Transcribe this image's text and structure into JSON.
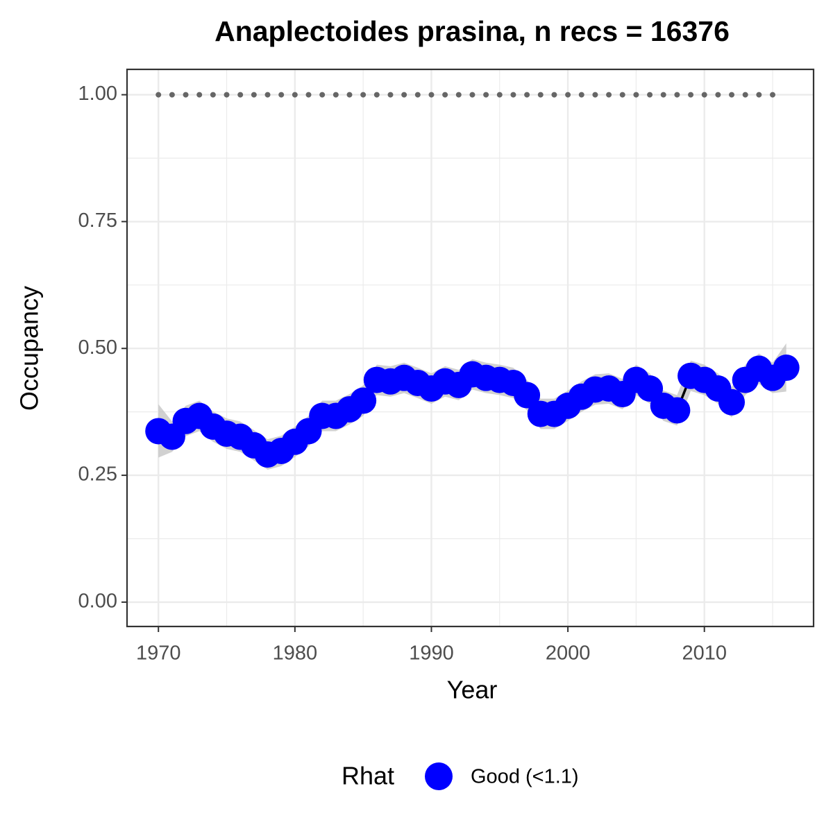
{
  "chart_data": {
    "type": "line",
    "title": "Anaplectoides prasina, n recs = 16376",
    "x_label": "Year",
    "y_label": "Occupancy",
    "legend_title": "Rhat",
    "x": [
      1970,
      1971,
      1972,
      1973,
      1974,
      1975,
      1976,
      1977,
      1978,
      1979,
      1980,
      1981,
      1982,
      1983,
      1984,
      1985,
      1986,
      1987,
      1988,
      1989,
      1990,
      1991,
      1992,
      1993,
      1994,
      1995,
      1996,
      1997,
      1998,
      1999,
      2000,
      2001,
      2002,
      2003,
      2004,
      2005,
      2006,
      2007,
      2008,
      2009,
      2010,
      2011,
      2012,
      2013,
      2014,
      2015,
      2016
    ],
    "series": [
      {
        "name": "Good (<1.1)",
        "color": "#0000ff",
        "line_color": "#000000",
        "values": [
          0.337,
          0.326,
          0.357,
          0.367,
          0.346,
          0.332,
          0.326,
          0.309,
          0.291,
          0.298,
          0.316,
          0.337,
          0.367,
          0.367,
          0.38,
          0.397,
          0.438,
          0.435,
          0.442,
          0.432,
          0.421,
          0.435,
          0.428,
          0.449,
          0.442,
          0.438,
          0.432,
          0.408,
          0.371,
          0.371,
          0.387,
          0.405,
          0.419,
          0.421,
          0.41,
          0.438,
          0.421,
          0.387,
          0.378,
          0.446,
          0.438,
          0.421,
          0.394,
          0.438,
          0.46,
          0.442,
          0.462
        ],
        "upper": [
          0.39,
          0.356,
          0.387,
          0.397,
          0.376,
          0.362,
          0.356,
          0.339,
          0.321,
          0.328,
          0.346,
          0.367,
          0.397,
          0.397,
          0.41,
          0.427,
          0.468,
          0.465,
          0.472,
          0.462,
          0.451,
          0.465,
          0.458,
          0.479,
          0.472,
          0.468,
          0.462,
          0.438,
          0.401,
          0.401,
          0.417,
          0.435,
          0.449,
          0.451,
          0.44,
          0.468,
          0.451,
          0.417,
          0.408,
          0.476,
          0.468,
          0.451,
          0.424,
          0.468,
          0.49,
          0.472,
          0.51
        ],
        "lower": [
          0.285,
          0.296,
          0.327,
          0.337,
          0.316,
          0.302,
          0.296,
          0.279,
          0.261,
          0.268,
          0.286,
          0.307,
          0.337,
          0.337,
          0.35,
          0.367,
          0.408,
          0.405,
          0.412,
          0.402,
          0.391,
          0.405,
          0.398,
          0.419,
          0.412,
          0.408,
          0.402,
          0.378,
          0.341,
          0.341,
          0.357,
          0.375,
          0.389,
          0.391,
          0.38,
          0.408,
          0.391,
          0.357,
          0.348,
          0.416,
          0.408,
          0.391,
          0.364,
          0.408,
          0.43,
          0.412,
          0.415
        ]
      }
    ],
    "ribbon_color": "#bebebe",
    "reference_line": 1,
    "reference_color": "#666666",
    "xlim": [
      1967.7,
      2018.0
    ],
    "ylim": [
      -0.048,
      1.05
    ],
    "xticks": [
      1970,
      1980,
      1990,
      2000,
      2010
    ],
    "yticks": [
      {
        "value": 0,
        "label": "0.00"
      },
      {
        "value": 0.25,
        "label": "0.25"
      },
      {
        "value": 0.5,
        "label": "0.50"
      },
      {
        "value": 0.75,
        "label": "0.75"
      },
      {
        "value": 1,
        "label": "1.00"
      }
    ],
    "grid": true
  }
}
